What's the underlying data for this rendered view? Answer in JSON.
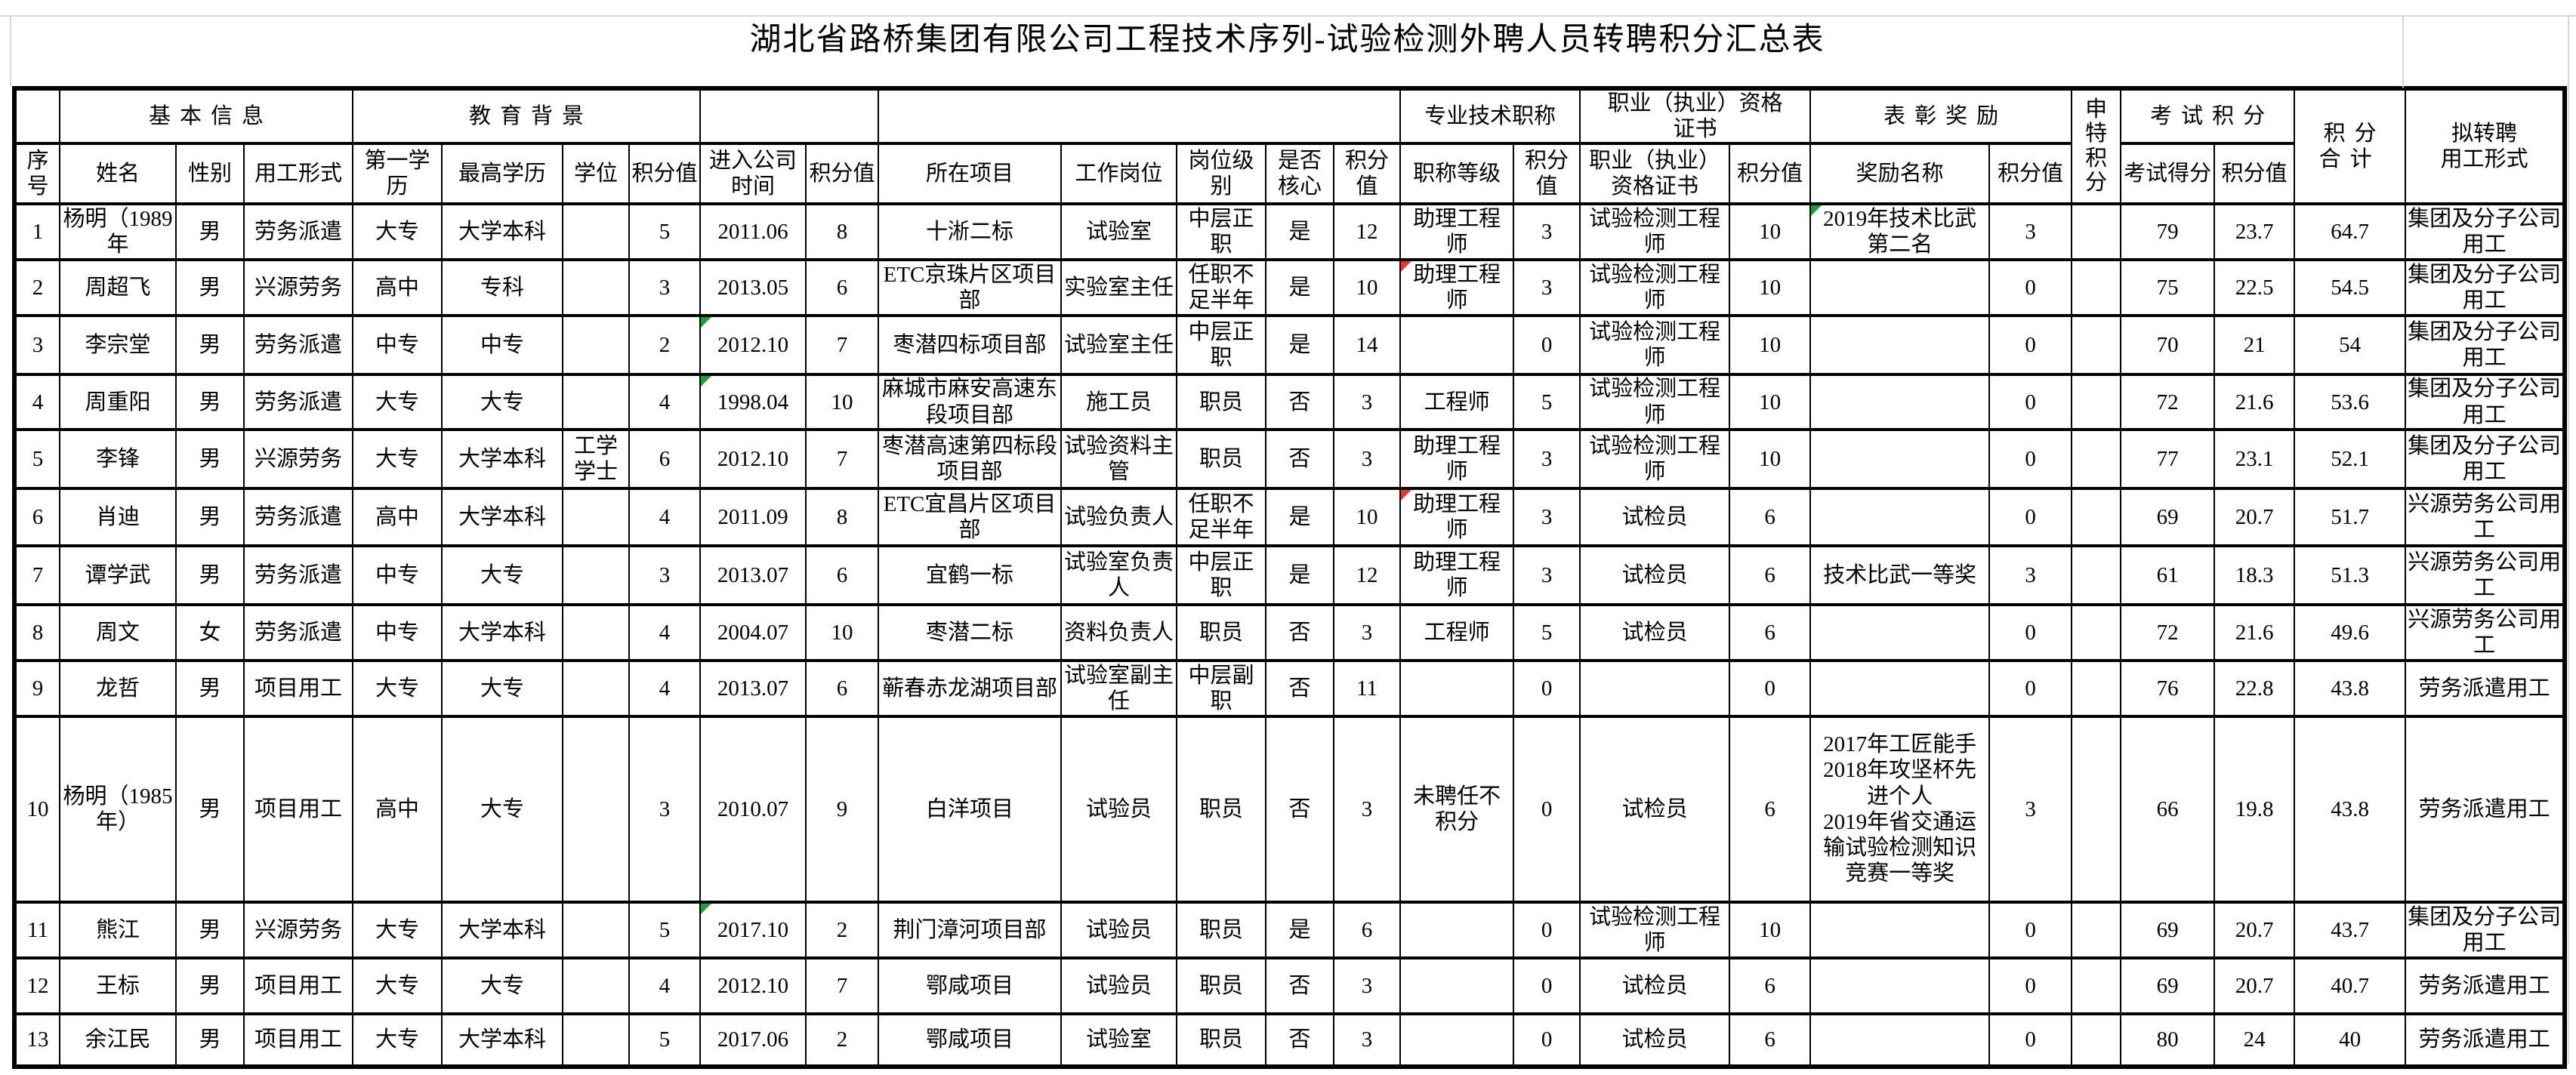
{
  "title": "湖北省路桥集团有限公司工程技术序列-试验检测外聘人员转聘积分汇总表",
  "colors": {
    "marker_green": "#1f9e3e",
    "marker_red": "#e23a2e",
    "grid": "#000000",
    "faint_grid": "#d6d6d6"
  },
  "table": {
    "group_header": [
      {
        "label": "",
        "colspan": 1,
        "spaced": false
      },
      {
        "label": "基本信息",
        "colspan": 3,
        "spaced": true
      },
      {
        "label": "教育背景",
        "colspan": 4,
        "spaced": true
      },
      {
        "label": "",
        "colspan": 2,
        "spaced": false
      },
      {
        "label": "",
        "colspan": 5,
        "spaced": false
      },
      {
        "label": "专业技术职称",
        "colspan": 2,
        "spaced": false
      },
      {
        "label": "职业（执业）资格\n证书",
        "colspan": 2,
        "spaced": false
      },
      {
        "label": "表彰奖励",
        "colspan": 2,
        "spaced": true
      },
      {
        "label": "申特积分",
        "colspan": 1,
        "rowspan": 2,
        "vertical": true
      },
      {
        "label": "考试积分",
        "colspan": 2,
        "spaced": true
      },
      {
        "label": "积分\n合计",
        "colspan": 1,
        "rowspan": 2,
        "spaced": true
      },
      {
        "label": "拟转聘\n用工形式",
        "colspan": 1,
        "rowspan": 2,
        "spaced": false
      }
    ],
    "column_header": [
      "序号",
      "姓名",
      "性别",
      "用工形式",
      "第一学历",
      "最高学历",
      "学位",
      "积分值",
      "进入公司时间",
      "积分值",
      "所在项目",
      "工作岗位",
      "岗位级别",
      "是否核心",
      "积分值",
      "职称等级",
      "积分值",
      "职业（执业）资格证书",
      "积分值",
      "奖励名称",
      "积分值",
      "考试得分",
      "积分值"
    ],
    "rows": [
      [
        "1",
        "杨明（1989年",
        "男",
        "劳务派遣",
        "大专",
        "大学本科",
        "",
        "5",
        "2011.06",
        "8",
        "十淅二标",
        "试验室",
        "中层正职",
        "是",
        "12",
        "助理工程师",
        "3",
        "试验检测工程师",
        "10",
        "2019年技术比武第二名",
        "3",
        "",
        "79",
        "23.7",
        "64.7",
        "集团及分子公司用工"
      ],
      [
        "2",
        "周超飞",
        "男",
        "兴源劳务",
        "高中",
        "专科",
        "",
        "3",
        "2013.05",
        "6",
        "ETC京珠片区项目部",
        "实验室主任",
        "任职不足半年",
        "是",
        "10",
        "助理工程师",
        "3",
        "试验检测工程师",
        "10",
        "",
        "0",
        "",
        "75",
        "22.5",
        "54.5",
        "集团及分子公司用工"
      ],
      [
        "3",
        "李宗堂",
        "男",
        "劳务派遣",
        "中专",
        "中专",
        "",
        "2",
        "2012.10",
        "7",
        "枣潜四标项目部",
        "试验室主任",
        "中层正职",
        "是",
        "14",
        "",
        "0",
        "试验检测工程师",
        "10",
        "",
        "0",
        "",
        "70",
        "21",
        "54",
        "集团及分子公司用工"
      ],
      [
        "4",
        "周重阳",
        "男",
        "劳务派遣",
        "大专",
        "大专",
        "",
        "4",
        "1998.04",
        "10",
        "麻城市麻安高速东段项目部",
        "施工员",
        "职员",
        "否",
        "3",
        "工程师",
        "5",
        "试验检测工程师",
        "10",
        "",
        "0",
        "",
        "72",
        "21.6",
        "53.6",
        "集团及分子公司用工"
      ],
      [
        "5",
        "李锋",
        "男",
        "兴源劳务",
        "大专",
        "大学本科",
        "工学学士",
        "6",
        "2012.10",
        "7",
        "枣潜高速第四标段项目部",
        "试验资料主管",
        "职员",
        "否",
        "3",
        "助理工程师",
        "3",
        "试验检测工程师",
        "10",
        "",
        "0",
        "",
        "77",
        "23.1",
        "52.1",
        "集团及分子公司用工"
      ],
      [
        "6",
        "肖迪",
        "男",
        "劳务派遣",
        "高中",
        "大学本科",
        "",
        "4",
        "2011.09",
        "8",
        "ETC宜昌片区项目部",
        "试验负责人",
        "任职不足半年",
        "是",
        "10",
        "助理工程师",
        "3",
        "试检员",
        "6",
        "",
        "0",
        "",
        "69",
        "20.7",
        "51.7",
        "兴源劳务公司用工"
      ],
      [
        "7",
        "谭学武",
        "男",
        "劳务派遣",
        "中专",
        "大专",
        "",
        "3",
        "2013.07",
        "6",
        "宜鹤一标",
        "试验室负责人",
        "中层正职",
        "是",
        "12",
        "助理工程师",
        "3",
        "试检员",
        "6",
        "技术比武一等奖",
        "3",
        "",
        "61",
        "18.3",
        "51.3",
        "兴源劳务公司用工"
      ],
      [
        "8",
        "周文",
        "女",
        "劳务派遣",
        "中专",
        "大学本科",
        "",
        "4",
        "2004.07",
        "10",
        "枣潜二标",
        "资料负责人",
        "职员",
        "否",
        "3",
        "工程师",
        "5",
        "试检员",
        "6",
        "",
        "0",
        "",
        "72",
        "21.6",
        "49.6",
        "兴源劳务公司用工"
      ],
      [
        "9",
        "龙哲",
        "男",
        "项目用工",
        "大专",
        "大专",
        "",
        "4",
        "2013.07",
        "6",
        "蕲春赤龙湖项目部",
        "试验室副主任",
        "中层副职",
        "否",
        "11",
        "",
        "0",
        "",
        "0",
        "",
        "0",
        "",
        "76",
        "22.8",
        "43.8",
        "劳务派遣用工"
      ],
      [
        "10",
        "杨明（1985年）",
        "男",
        "项目用工",
        "高中",
        "大专",
        "",
        "3",
        "2010.07",
        "9",
        "白洋项目",
        "试验员",
        "职员",
        "否",
        "3",
        "未聘任不积分",
        "0",
        "试检员",
        "6",
        "2017年工匠能手\n2018年攻坚杯先进个人\n2019年省交通运输试验检测知识竞赛一等奖",
        "3",
        "",
        "66",
        "19.8",
        "43.8",
        "劳务派遣用工"
      ],
      [
        "11",
        "熊江",
        "男",
        "兴源劳务",
        "大专",
        "大学本科",
        "",
        "5",
        "2017.10",
        "2",
        "荆门漳河项目部",
        "试验员",
        "职员",
        "是",
        "6",
        "",
        "0",
        "试验检测工程师",
        "10",
        "",
        "0",
        "",
        "69",
        "20.7",
        "43.7",
        "集团及分子公司用工"
      ],
      [
        "12",
        "王标",
        "男",
        "项目用工",
        "大专",
        "大专",
        "",
        "4",
        "2012.10",
        "7",
        "鄂咸项目",
        "试验员",
        "职员",
        "否",
        "3",
        "",
        "0",
        "试检员",
        "6",
        "",
        "0",
        "",
        "69",
        "20.7",
        "40.7",
        "劳务派遣用工"
      ],
      [
        "13",
        "余江民",
        "男",
        "项目用工",
        "大专",
        "大学本科",
        "",
        "5",
        "2017.06",
        "2",
        "鄂咸项目",
        "试验室",
        "职员",
        "否",
        "3",
        "",
        "0",
        "试检员",
        "6",
        "",
        "0",
        "",
        "80",
        "24",
        "40",
        "劳务派遣用工"
      ]
    ],
    "markers": [
      {
        "row": 1,
        "col": 20,
        "color": "green"
      },
      {
        "row": 3,
        "col": 9,
        "color": "green"
      },
      {
        "row": 4,
        "col": 9,
        "color": "green"
      },
      {
        "row": 11,
        "col": 9,
        "color": "green"
      },
      {
        "row": 2,
        "col": 16,
        "color": "red"
      },
      {
        "row": 6,
        "col": 16,
        "color": "red"
      }
    ]
  }
}
